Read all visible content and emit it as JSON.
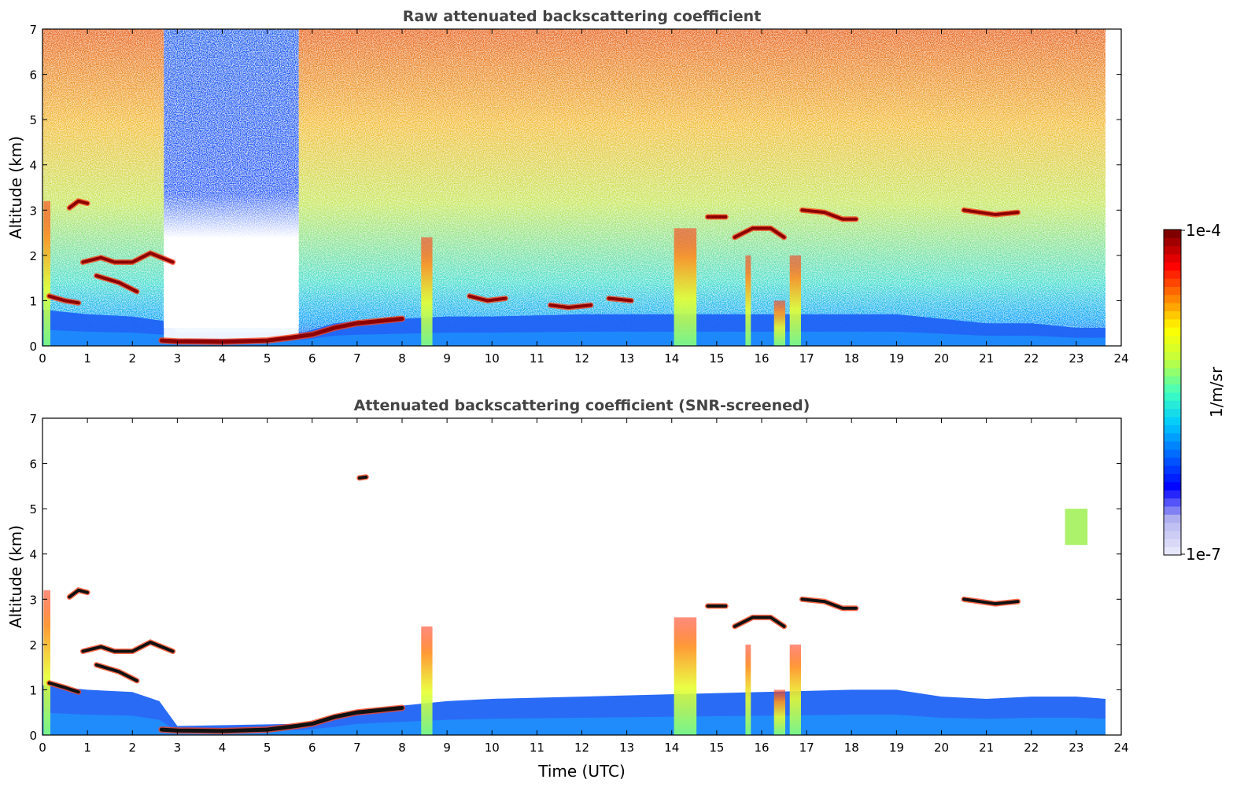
{
  "chart_data": [
    {
      "type": "heatmap",
      "title": "Raw attenuated backscattering coefficient",
      "xlabel": "",
      "ylabel": "Altitude (km)",
      "xlim": [
        0,
        24
      ],
      "ylim": [
        0,
        7
      ],
      "xticks": [
        0,
        1,
        2,
        3,
        4,
        5,
        6,
        7,
        8,
        9,
        10,
        11,
        12,
        13,
        14,
        15,
        16,
        17,
        18,
        19,
        20,
        21,
        22,
        23,
        24
      ],
      "yticks": [
        0,
        1,
        2,
        3,
        4,
        5,
        6,
        7
      ],
      "data_end_time": 23.65,
      "noise": "high",
      "features": [
        {
          "kind": "boundary-layer",
          "points": [
            [
              0,
              0.8
            ],
            [
              0.5,
              0.75
            ],
            [
              1,
              0.7
            ],
            [
              2,
              0.65
            ],
            [
              2.7,
              0.55
            ],
            [
              3,
              0.3
            ],
            [
              5.8,
              0.3
            ],
            [
              6.5,
              0.5
            ],
            [
              7,
              0.55
            ],
            [
              8,
              0.6
            ],
            [
              9,
              0.65
            ],
            [
              10,
              0.65
            ],
            [
              12,
              0.7
            ],
            [
              14,
              0.7
            ],
            [
              16,
              0.7
            ],
            [
              18,
              0.7
            ],
            [
              19,
              0.7
            ],
            [
              20,
              0.6
            ],
            [
              21,
              0.5
            ],
            [
              22,
              0.5
            ],
            [
              23,
              0.4
            ],
            [
              23.65,
              0.4
            ]
          ]
        },
        {
          "kind": "fog-layer",
          "points": [
            [
              2.65,
              0.12
            ],
            [
              3.0,
              0.1
            ],
            [
              4.0,
              0.09
            ],
            [
              5.0,
              0.12
            ],
            [
              5.5,
              0.18
            ],
            [
              6.0,
              0.25
            ],
            [
              6.5,
              0.4
            ],
            [
              7.0,
              0.5
            ],
            [
              7.5,
              0.55
            ],
            [
              8.0,
              0.6
            ]
          ]
        },
        {
          "kind": "cloud-layer",
          "points": [
            [
              0.15,
              1.1
            ],
            [
              0.5,
              1.0
            ],
            [
              0.8,
              0.95
            ]
          ]
        },
        {
          "kind": "cloud-layer",
          "points": [
            [
              0.9,
              1.85
            ],
            [
              1.3,
              1.95
            ],
            [
              1.6,
              1.85
            ],
            [
              2.0,
              1.85
            ],
            [
              2.4,
              2.05
            ],
            [
              2.9,
              1.85
            ]
          ]
        },
        {
          "kind": "cloud-layer",
          "points": [
            [
              1.2,
              1.55
            ],
            [
              1.7,
              1.4
            ],
            [
              2.1,
              1.2
            ]
          ]
        },
        {
          "kind": "cloud-layer",
          "points": [
            [
              0.6,
              3.05
            ],
            [
              0.8,
              3.2
            ],
            [
              1.0,
              3.15
            ]
          ]
        },
        {
          "kind": "cloud-layer",
          "points": [
            [
              14.8,
              2.85
            ],
            [
              15.2,
              2.85
            ]
          ]
        },
        {
          "kind": "cloud-layer",
          "points": [
            [
              15.4,
              2.4
            ],
            [
              15.8,
              2.6
            ],
            [
              16.2,
              2.6
            ],
            [
              16.5,
              2.4
            ]
          ]
        },
        {
          "kind": "cloud-layer",
          "points": [
            [
              16.9,
              3.0
            ],
            [
              17.4,
              2.95
            ],
            [
              17.8,
              2.8
            ],
            [
              18.1,
              2.8
            ]
          ]
        },
        {
          "kind": "cloud-layer",
          "points": [
            [
              20.5,
              3.0
            ],
            [
              21.2,
              2.9
            ],
            [
              21.7,
              2.95
            ]
          ]
        },
        {
          "kind": "cloud-layer",
          "points": [
            [
              9.5,
              1.1
            ],
            [
              9.9,
              1.0
            ],
            [
              10.3,
              1.05
            ]
          ]
        },
        {
          "kind": "cloud-layer",
          "points": [
            [
              11.3,
              0.9
            ],
            [
              11.7,
              0.85
            ],
            [
              12.2,
              0.9
            ]
          ]
        },
        {
          "kind": "cloud-layer",
          "points": [
            [
              12.6,
              1.05
            ],
            [
              13.1,
              1.0
            ]
          ]
        },
        {
          "kind": "plume",
          "x": 8.55,
          "top": 2.4,
          "width": 0.25
        },
        {
          "kind": "plume",
          "x": 14.3,
          "top": 2.6,
          "width": 0.5
        },
        {
          "kind": "plume",
          "x": 16.4,
          "top": 1.0,
          "width": 0.25
        },
        {
          "kind": "plume",
          "x": 16.75,
          "top": 2.0,
          "width": 0.25
        },
        {
          "kind": "plume",
          "x": 15.7,
          "top": 2.0,
          "width": 0.12
        },
        {
          "kind": "plume",
          "x": 0.1,
          "top": 3.2,
          "width": 0.15
        },
        {
          "kind": "precipitation-gap",
          "x0": 2.7,
          "x1": 5.7,
          "low": 0.4,
          "high": 7
        }
      ]
    },
    {
      "type": "heatmap",
      "title": "Attenuated backscattering coefficient (SNR-screened)",
      "xlabel": "Time (UTC)",
      "ylabel": "Altitude (km)",
      "xlim": [
        0,
        24
      ],
      "ylim": [
        0,
        7
      ],
      "xticks": [
        0,
        1,
        2,
        3,
        4,
        5,
        6,
        7,
        8,
        9,
        10,
        11,
        12,
        13,
        14,
        15,
        16,
        17,
        18,
        19,
        20,
        21,
        22,
        23,
        24
      ],
      "yticks": [
        0,
        1,
        2,
        3,
        4,
        5,
        6,
        7
      ],
      "data_end_time": 23.65,
      "noise": "none",
      "features": [
        {
          "kind": "boundary-layer",
          "points": [
            [
              0,
              1.1
            ],
            [
              0.5,
              1.05
            ],
            [
              1,
              1.0
            ],
            [
              2,
              0.95
            ],
            [
              2.6,
              0.75
            ],
            [
              3,
              0.2
            ],
            [
              5.8,
              0.25
            ],
            [
              6.5,
              0.4
            ],
            [
              7,
              0.55
            ],
            [
              8,
              0.65
            ],
            [
              9,
              0.75
            ],
            [
              10,
              0.8
            ],
            [
              12,
              0.85
            ],
            [
              14,
              0.9
            ],
            [
              16,
              0.95
            ],
            [
              18,
              1.0
            ],
            [
              19,
              1.0
            ],
            [
              20,
              0.85
            ],
            [
              21,
              0.8
            ],
            [
              22,
              0.85
            ],
            [
              23,
              0.85
            ],
            [
              23.65,
              0.8
            ]
          ]
        },
        {
          "kind": "fog-layer",
          "points": [
            [
              2.65,
              0.12
            ],
            [
              3.0,
              0.1
            ],
            [
              4.0,
              0.09
            ],
            [
              5.0,
              0.12
            ],
            [
              5.5,
              0.18
            ],
            [
              6.0,
              0.25
            ],
            [
              6.5,
              0.4
            ],
            [
              7.0,
              0.5
            ],
            [
              7.5,
              0.55
            ],
            [
              8.0,
              0.6
            ]
          ]
        },
        {
          "kind": "cloud-layer",
          "points": [
            [
              0.15,
              1.15
            ],
            [
              0.5,
              1.05
            ],
            [
              0.8,
              0.95
            ]
          ]
        },
        {
          "kind": "cloud-layer",
          "points": [
            [
              0.9,
              1.85
            ],
            [
              1.3,
              1.95
            ],
            [
              1.6,
              1.85
            ],
            [
              2.0,
              1.85
            ],
            [
              2.4,
              2.05
            ],
            [
              2.9,
              1.85
            ]
          ]
        },
        {
          "kind": "cloud-layer",
          "points": [
            [
              1.2,
              1.55
            ],
            [
              1.7,
              1.4
            ],
            [
              2.1,
              1.2
            ]
          ]
        },
        {
          "kind": "cloud-layer",
          "points": [
            [
              0.6,
              3.05
            ],
            [
              0.8,
              3.2
            ],
            [
              1.0,
              3.15
            ]
          ]
        },
        {
          "kind": "cloud-layer",
          "points": [
            [
              14.8,
              2.85
            ],
            [
              15.2,
              2.85
            ]
          ]
        },
        {
          "kind": "cloud-layer",
          "points": [
            [
              15.4,
              2.4
            ],
            [
              15.8,
              2.6
            ],
            [
              16.2,
              2.6
            ],
            [
              16.5,
              2.4
            ]
          ]
        },
        {
          "kind": "cloud-layer",
          "points": [
            [
              16.9,
              3.0
            ],
            [
              17.4,
              2.95
            ],
            [
              17.8,
              2.8
            ],
            [
              18.1,
              2.8
            ]
          ]
        },
        {
          "kind": "cloud-layer",
          "points": [
            [
              20.5,
              3.0
            ],
            [
              21.2,
              2.9
            ],
            [
              21.7,
              2.95
            ]
          ]
        },
        {
          "kind": "cloud-layer",
          "points": [
            [
              7.05,
              5.68
            ],
            [
              7.2,
              5.7
            ]
          ]
        },
        {
          "kind": "plume",
          "x": 8.55,
          "top": 2.4,
          "width": 0.25
        },
        {
          "kind": "plume",
          "x": 14.3,
          "top": 2.6,
          "width": 0.5
        },
        {
          "kind": "plume",
          "x": 16.4,
          "top": 1.0,
          "width": 0.25
        },
        {
          "kind": "plume",
          "x": 16.75,
          "top": 2.0,
          "width": 0.25
        },
        {
          "kind": "plume",
          "x": 15.7,
          "top": 2.0,
          "width": 0.12
        },
        {
          "kind": "plume",
          "x": 0.1,
          "top": 3.2,
          "width": 0.15
        },
        {
          "kind": "aerosol-patch",
          "x": 23.0,
          "y": 4.6,
          "width": 0.5,
          "height": 0.8
        }
      ]
    }
  ],
  "colorbar": {
    "label": "1/m/sr",
    "min_label": "1e-7",
    "max_label": "1e-4",
    "scale": "log",
    "colormap": "jet",
    "colors": [
      "#e6e6fa",
      "#b4b4f0",
      "#0000ff",
      "#0064ff",
      "#00c8ff",
      "#40ffbf",
      "#bfff40",
      "#ffff00",
      "#ff8000",
      "#ff0000",
      "#800000"
    ]
  }
}
